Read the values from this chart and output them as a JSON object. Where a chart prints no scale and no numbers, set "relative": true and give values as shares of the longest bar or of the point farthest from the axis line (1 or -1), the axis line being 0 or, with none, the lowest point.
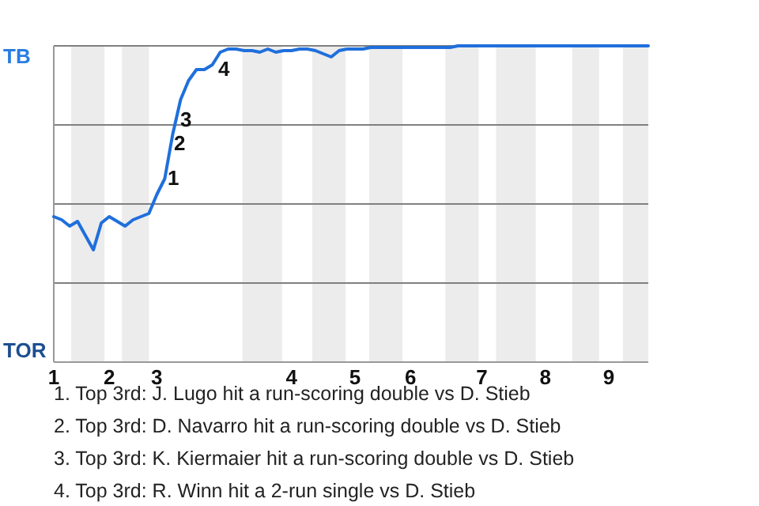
{
  "chart_data": {
    "type": "line",
    "relative": true,
    "categories": [
      "1",
      null,
      null,
      null,
      null,
      null,
      null,
      "2",
      null,
      null,
      null,
      null,
      null,
      "3",
      null,
      null,
      null,
      null,
      null,
      null,
      null,
      null,
      null,
      null,
      null,
      null,
      null,
      null,
      null,
      null,
      "4",
      null,
      null,
      null,
      null,
      null,
      null,
      null,
      "5",
      null,
      null,
      null,
      null,
      null,
      null,
      "6",
      null,
      null,
      null,
      null,
      null,
      null,
      null,
      null,
      "7",
      null,
      null,
      null,
      null,
      null,
      null,
      null,
      "8",
      null,
      null,
      null,
      null,
      null,
      null,
      null,
      "9",
      null,
      null,
      null,
      null,
      null
    ],
    "series": [
      {
        "color": "#1f6fdc",
        "values": [
          0.46,
          0.45,
          0.43,
          0.445,
          0.4,
          0.355,
          0.44,
          0.46,
          0.445,
          0.43,
          0.45,
          0.46,
          0.47,
          0.53,
          0.58,
          0.72,
          0.83,
          0.89,
          0.925,
          0.925,
          0.94,
          0.98,
          0.99,
          0.99,
          0.985,
          0.985,
          0.98,
          0.99,
          0.98,
          0.985,
          0.985,
          0.99,
          0.99,
          0.985,
          0.975,
          0.965,
          0.985,
          0.99,
          0.99,
          0.99,
          0.995,
          0.995,
          0.995,
          0.995,
          0.995,
          0.995,
          0.995,
          0.995,
          0.995,
          0.995,
          0.995,
          1,
          1,
          1,
          1,
          1,
          1,
          1,
          1,
          1,
          1,
          1,
          1,
          1,
          1,
          1,
          1,
          1,
          1,
          1,
          1,
          1,
          1,
          1,
          1,
          1
        ]
      }
    ],
    "ref_lines": [
      {
        "axis": "y",
        "value": 0.25,
        "color": "#808080"
      },
      {
        "axis": "y",
        "value": 0.5,
        "color": "#808080"
      },
      {
        "axis": "y",
        "value": 0.75,
        "color": "#808080"
      },
      {
        "axis": "y",
        "value": 1,
        "color": "#808080"
      }
    ],
    "annotations": [
      "TB",
      "TOR",
      "1",
      "2",
      "3",
      "4",
      "1. Top 3rd: J. Lugo hit a run-scoring double vs D. Stieb",
      "2. Top 3rd: D. Navarro hit a run-scoring double vs D. Stieb",
      "3. Top 3rd: K. Kiermaier hit a run-scoring double vs D. Stieb",
      "4. Top 3rd: R. Winn hit a 2-run single vs D. Stieb"
    ]
  }
}
